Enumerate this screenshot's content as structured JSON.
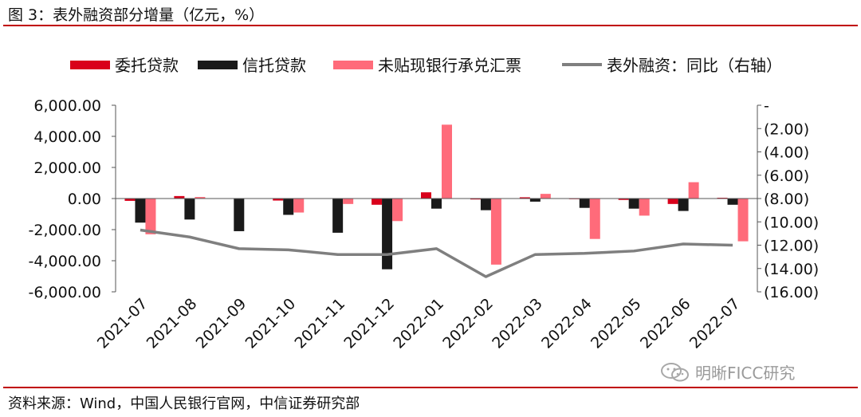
{
  "title": "图 3：表外融资部分增量（亿元，%）",
  "source": "资料来源：Wind，中国人民银行官网，中信证券研究部",
  "watermark": "明晰FICC研究",
  "colors": {
    "entrusted": "#d9001b",
    "trust": "#1a1a1a",
    "bills": "#ff6b7a",
    "yoy": "#7f7f7f",
    "accent_rule": "#c00000"
  },
  "chart_data": {
    "type": "bar",
    "categories": [
      "2021-07",
      "2021-08",
      "2021-09",
      "2021-10",
      "2021-11",
      "2021-12",
      "2022-01",
      "2022-02",
      "2022-03",
      "2022-04",
      "2022-05",
      "2022-06",
      "2022-07"
    ],
    "series": [
      {
        "name": "委托贷款",
        "type": "bar",
        "axis": "left",
        "color": "#d9001b",
        "values": [
          -150,
          160,
          -20,
          -130,
          -20,
          -400,
          400,
          -60,
          80,
          -40,
          -90,
          -350,
          50
        ]
      },
      {
        "name": "信托贷款",
        "type": "bar",
        "axis": "left",
        "color": "#1a1a1a",
        "values": [
          -1550,
          -1350,
          -2100,
          -1050,
          -2200,
          -4550,
          -650,
          -750,
          -200,
          -600,
          -650,
          -800,
          -400
        ]
      },
      {
        "name": "未贴现银行承兑汇票",
        "type": "bar",
        "axis": "left",
        "color": "#ff6b7a",
        "values": [
          -2300,
          100,
          0,
          -900,
          -350,
          -1450,
          4750,
          -4250,
          300,
          -2600,
          -1100,
          1050,
          -2750
        ]
      },
      {
        "name": "表外融资：同比（右轴）",
        "type": "line",
        "axis": "right",
        "color": "#7f7f7f",
        "values": [
          -10.7,
          -11.3,
          -12.3,
          -12.4,
          -12.8,
          -12.8,
          -12.3,
          -14.7,
          -12.8,
          -12.7,
          -12.5,
          -11.9,
          -12.0
        ]
      }
    ],
    "left_axis": {
      "ylim": [
        -6000,
        6000
      ],
      "ticks": [
        6000,
        4000,
        2000,
        0,
        -2000,
        -4000,
        -6000
      ],
      "tick_labels": [
        "6,000.00",
        "4,000.00",
        "2,000.00",
        "0.00",
        "-2,000.00",
        "-4,000.00",
        "-6,000.00"
      ]
    },
    "right_axis": {
      "ylim": [
        -16,
        0
      ],
      "ticks": [
        0,
        -2,
        -4,
        -6,
        -8,
        -10,
        -12,
        -14,
        -16
      ],
      "tick_labels": [
        "-",
        "(2.00)",
        "(4.00)",
        "(6.00)",
        "(8.00)",
        "(10.00)",
        "(12.00)",
        "(14.00)",
        "(16.00)"
      ]
    },
    "legend_position": "top",
    "grid": false
  }
}
